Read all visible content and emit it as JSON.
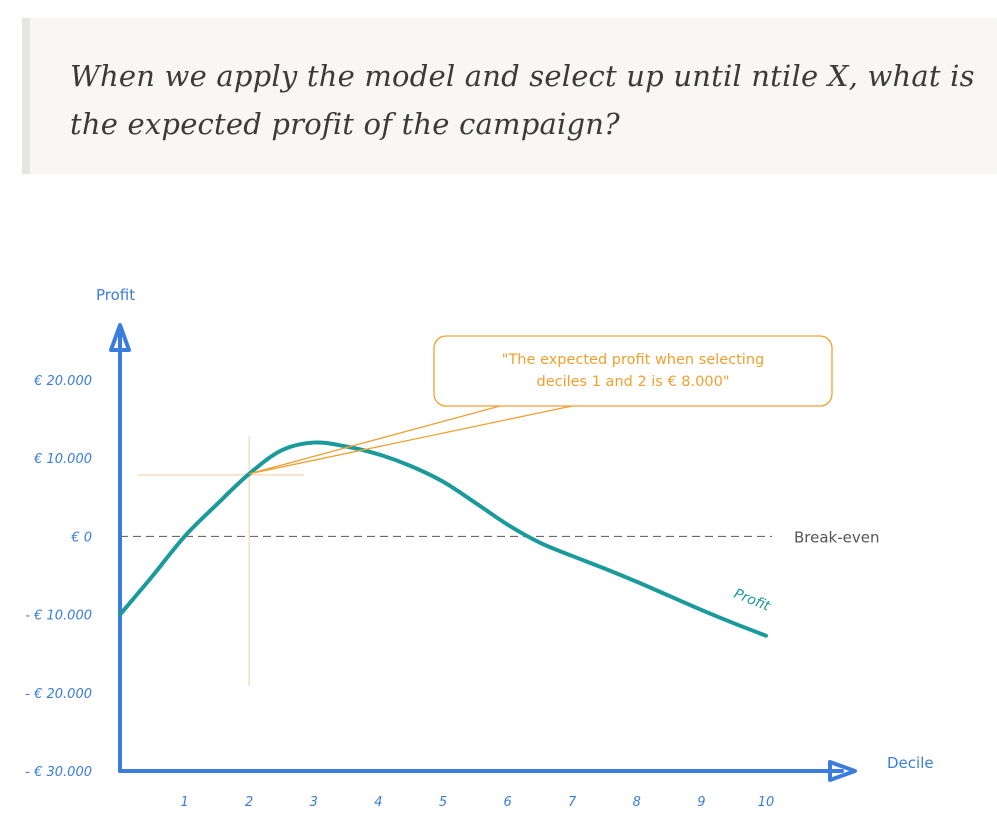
{
  "question": "When we apply the model and select up until ntile X, what is the expected profit of the campaign?",
  "chart_data": {
    "type": "line",
    "x_label": "Decile",
    "y_label": "Profit",
    "x_ticks": [
      "1",
      "2",
      "3",
      "4",
      "5",
      "6",
      "7",
      "8",
      "9",
      "10"
    ],
    "y_ticks": [
      {
        "value": 20000,
        "label": "€ 20.000"
      },
      {
        "value": 10000,
        "label": "€ 10.000"
      },
      {
        "value": 0,
        "label": "€ 0"
      },
      {
        "value": -10000,
        "label": "- € 10.000"
      },
      {
        "value": -20000,
        "label": "- € 20.000"
      },
      {
        "value": -30000,
        "label": "- € 30.000"
      }
    ],
    "ylim": [
      -30000,
      20000
    ],
    "xlim": [
      0,
      10
    ],
    "series": [
      {
        "name": "Profit",
        "x": [
          0,
          0.5,
          1,
          1.5,
          2,
          2.5,
          3,
          3.5,
          4,
          4.5,
          5,
          5.5,
          6,
          6.5,
          7,
          7.5,
          8,
          8.5,
          9,
          9.5,
          10
        ],
        "y": [
          -10000,
          -5100,
          0,
          4100,
          8000,
          11000,
          12000,
          11500,
          10500,
          9000,
          7000,
          4300,
          1500,
          -800,
          -2500,
          -4100,
          -5800,
          -7600,
          -9400,
          -11100,
          -12700
        ]
      }
    ],
    "reference_line": {
      "value": 0,
      "label": "Break-even"
    },
    "annotation": {
      "text_line1": "\"The expected profit when selecting",
      "text_line2": "deciles 1 and 2 is € 8.000\"",
      "point": {
        "x": 2,
        "y": 8000
      }
    },
    "colors": {
      "axis": "#3b7ddd",
      "line": "#1a9a9a",
      "annotation": "#f0a030",
      "crosshair": "#f6dcc0",
      "reference": "#555555"
    }
  }
}
